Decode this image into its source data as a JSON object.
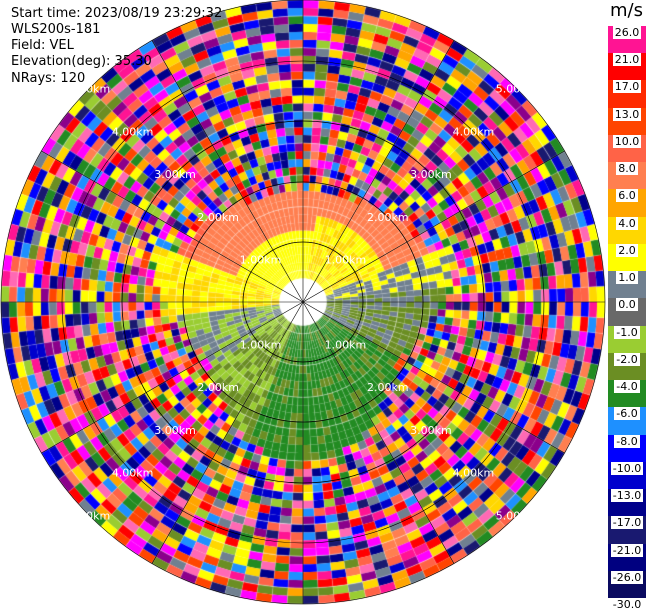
{
  "header": {
    "start_time": "Start time: 2023/08/19 23:29:32",
    "instrument": "WLS200s-181",
    "field": "Field: VEL",
    "elevation": "Elevation(deg): 35.30",
    "nrays": "NRays: 120"
  },
  "colorbar": {
    "unit": "m/s",
    "ticks": [
      "26.0",
      "21.0",
      "17.0",
      "13.0",
      "10.0",
      "8.0",
      "6.0",
      "4.0",
      "2.0",
      "1.0",
      "0.0",
      "-1.0",
      "-2.0",
      "-4.0",
      "-6.0",
      "-8.0",
      "-10.0",
      "-13.0",
      "-17.0",
      "-21.0",
      "-26.0",
      "-30.0"
    ],
    "colors": [
      "#ff1493",
      "#ff0000",
      "#ff2a00",
      "#ff4500",
      "#ff6347",
      "#ff7f50",
      "#ffa500",
      "#ffd700",
      "#ffff00",
      "#708090",
      "#696969",
      "#9acd32",
      "#6b8e23",
      "#228b22",
      "#1e90ff",
      "#0000ff",
      "#0000cd",
      "#00008b",
      "#191970",
      "#000080",
      "#0a0a60"
    ]
  },
  "chart_data": {
    "type": "heatmap",
    "projection": "PPI",
    "field": "VEL",
    "units": "m/s",
    "nrays": 120,
    "ring_labels": [
      "1.00km",
      "2.00km",
      "3.00km",
      "4.00km",
      "5.00km"
    ],
    "color_range": [
      -30,
      26
    ]
  }
}
